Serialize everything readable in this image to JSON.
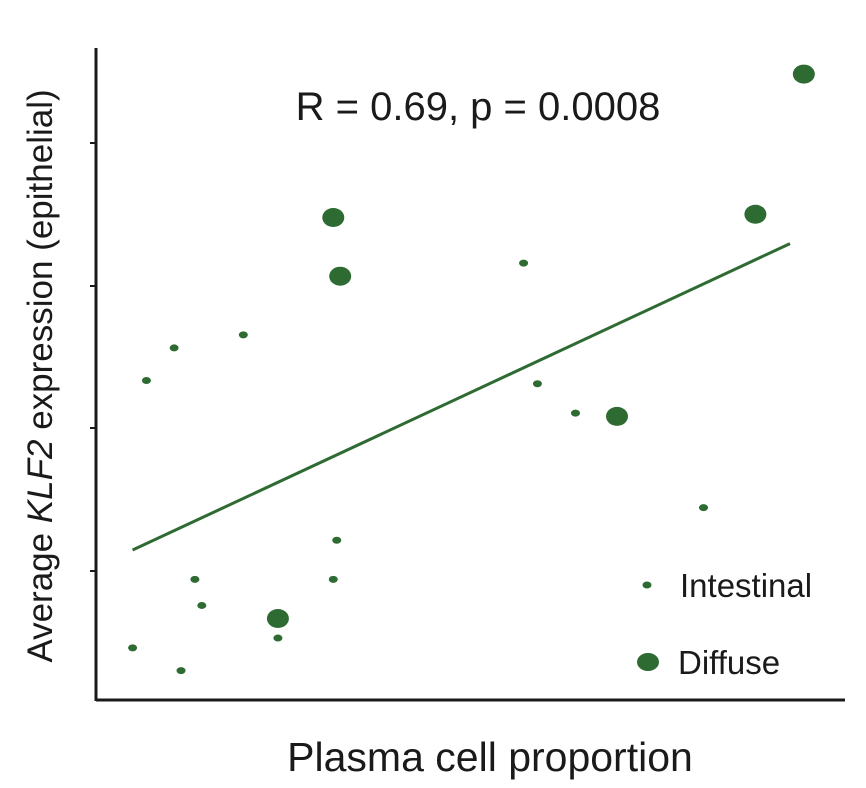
{
  "chart_data": {
    "type": "scatter",
    "title": "",
    "annotation": "R = 0.69, p = 0.0008",
    "xlabel": "Plasma cell proportion",
    "ylabel": {
      "prefix": "Average ",
      "gene": "KLF2",
      "suffix": " expression (epithelial)"
    },
    "xlim": [
      0,
      1
    ],
    "ylim": [
      0,
      1
    ],
    "x_ticks_labeled": false,
    "y_ticks_labeled": false,
    "grid": false,
    "legend_position": "bottom-right",
    "color": "#2e6b33",
    "series": [
      {
        "name": "Intestinal",
        "marker": "small-dot",
        "points": [
          {
            "x": 0.07,
            "y": 0.49
          },
          {
            "x": 0.11,
            "y": 0.54
          },
          {
            "x": 0.21,
            "y": 0.56
          },
          {
            "x": 0.05,
            "y": 0.08
          },
          {
            "x": 0.12,
            "y": 0.045
          },
          {
            "x": 0.14,
            "y": 0.185
          },
          {
            "x": 0.15,
            "y": 0.145
          },
          {
            "x": 0.26,
            "y": 0.095
          },
          {
            "x": 0.34,
            "y": 0.185
          },
          {
            "x": 0.345,
            "y": 0.245
          },
          {
            "x": 0.615,
            "y": 0.67
          },
          {
            "x": 0.635,
            "y": 0.485
          },
          {
            "x": 0.69,
            "y": 0.44
          },
          {
            "x": 0.875,
            "y": 0.295
          }
        ]
      },
      {
        "name": "Diffuse",
        "marker": "large-dot",
        "points": [
          {
            "x": 0.26,
            "y": 0.125
          },
          {
            "x": 0.34,
            "y": 0.74
          },
          {
            "x": 0.35,
            "y": 0.65
          },
          {
            "x": 0.75,
            "y": 0.435
          },
          {
            "x": 0.95,
            "y": 0.745
          },
          {
            "x": 1.02,
            "y": 0.96
          }
        ]
      }
    ],
    "regression_line": {
      "x": [
        0.05,
        1.0
      ],
      "y": [
        0.23,
        0.7
      ]
    }
  }
}
